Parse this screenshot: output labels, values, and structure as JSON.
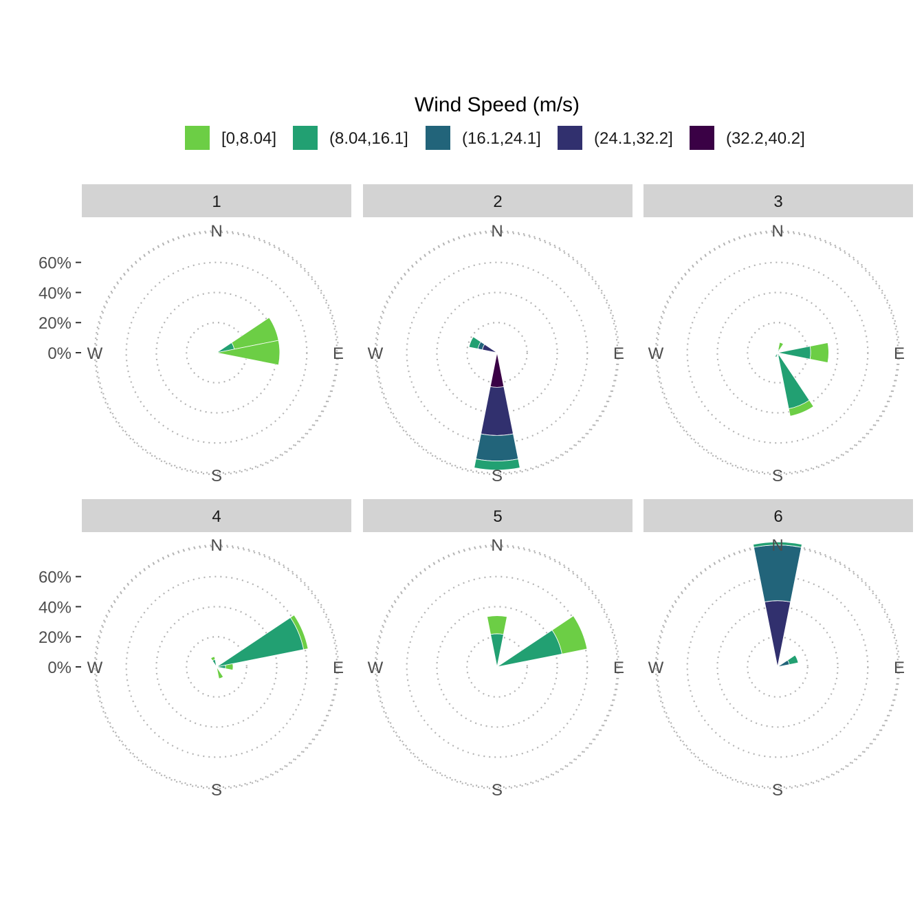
{
  "chart_data": {
    "type": "wind-rose",
    "legend": {
      "title": "Wind Speed (m/s)",
      "position": "top",
      "bins": [
        {
          "label": "[0,8.04]",
          "color": "#6CCE45"
        },
        {
          "label": "(8.04,16.1]",
          "color": "#22A072"
        },
        {
          "label": "(16.1,24.1]",
          "color": "#22647A"
        },
        {
          "label": "(24.1,32.2]",
          "color": "#31306E"
        },
        {
          "label": "(32.2,40.2]",
          "color": "#3A0145"
        }
      ]
    },
    "directions": {
      "n": "N",
      "e": "E",
      "s": "S",
      "w": "W"
    },
    "radial_axis": {
      "max": 0.9,
      "grid": [
        0,
        0.2,
        0.4,
        0.6,
        0.8
      ],
      "ticks": [
        "0%",
        "20%",
        "40%",
        "60%"
      ],
      "tick_values": [
        0,
        0.2,
        0.4,
        0.6
      ]
    },
    "sector_width_deg": 22.5,
    "panels": [
      {
        "label": "1",
        "sectors": [
          {
            "dir": 67.5,
            "values": [
              0.3,
              0.12,
              0,
              0,
              0
            ]
          },
          {
            "dir": 90,
            "values": [
              0.42,
              0,
              0,
              0,
              0
            ]
          }
        ]
      },
      {
        "label": "2",
        "sectors": [
          {
            "dir": 180,
            "values": [
              0,
              0.06,
              0.17,
              0.32,
              0.23
            ]
          },
          {
            "dir": 292.5,
            "values": [
              0,
              0.06,
              0.03,
              0.1,
              0
            ]
          }
        ]
      },
      {
        "label": "3",
        "sectors": [
          {
            "dir": 22.5,
            "values": [
              0.05,
              0.02,
              0,
              0,
              0
            ]
          },
          {
            "dir": 90,
            "values": [
              0.12,
              0.22,
              0,
              0,
              0
            ]
          },
          {
            "dir": 157.5,
            "values": [
              0.05,
              0.36,
              0.02,
              0,
              0
            ]
          },
          {
            "dir": 180,
            "values": [
              0,
              0.02,
              0,
              0,
              0
            ]
          },
          {
            "dir": 202.5,
            "values": [
              0,
              0.03,
              0,
              0,
              0
            ]
          }
        ]
      },
      {
        "label": "4",
        "sectors": [
          {
            "dir": 67.5,
            "values": [
              0.03,
              0.59,
              0,
              0,
              0
            ]
          },
          {
            "dir": 90,
            "values": [
              0.05,
              0.06,
              0,
              0,
              0
            ]
          },
          {
            "dir": 157.5,
            "values": [
              0.08,
              0,
              0,
              0,
              0
            ]
          },
          {
            "dir": 337.5,
            "values": [
              0.02,
              0.05,
              0,
              0,
              0
            ]
          }
        ]
      },
      {
        "label": "5",
        "sectors": [
          {
            "dir": 0,
            "values": [
              0.12,
              0.22,
              0,
              0,
              0
            ]
          },
          {
            "dir": 67.5,
            "values": [
              0.17,
              0.44,
              0,
              0,
              0
            ]
          }
        ]
      },
      {
        "label": "6",
        "sectors": [
          {
            "dir": 0,
            "values": [
              0,
              0.02,
              0.37,
              0.44,
              0
            ]
          },
          {
            "dir": 67.5,
            "values": [
              0,
              0.06,
              0.08,
              0,
              0
            ]
          }
        ]
      }
    ]
  }
}
